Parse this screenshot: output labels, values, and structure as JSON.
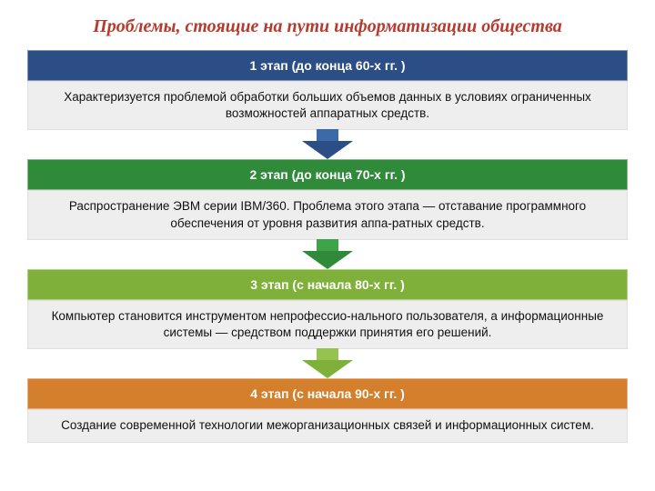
{
  "title": "Проблемы, стоящие на пути информатизации общества",
  "title_color": "#b73a2e",
  "body_bg": "#eeeeee",
  "body_text_color": "#111111",
  "stages": [
    {
      "header": "1 этап (до конца 60-х гг. )",
      "body": "Характеризуется проблемой обработки больших объемов данных в условиях ограниченных возможностей аппаратных средств.",
      "header_bg": "#2b4e86",
      "arrow_stem": "#3c6aa8",
      "arrow_head": "#2b4e86"
    },
    {
      "header": "2 этап (до конца 70-х гг. )",
      "body": "Распространение ЭВМ серии IBM/360. Проблема этого этапа — отставание программного обеспечения от уровня развития аппа-ратных средств.",
      "header_bg": "#2f8a3a",
      "arrow_stem": "#3fa34a",
      "arrow_head": "#2f8a3a"
    },
    {
      "header": "3 этап (с начала 80-х гг. )",
      "body": "Компьютер становится инструментом непрофессио-нального пользователя, а информационные системы — средством поддержки принятия его решений.",
      "header_bg": "#7fb13a",
      "arrow_stem": "#94c44f",
      "arrow_head": "#7fb13a"
    },
    {
      "header": "4 этап (с начала 90-х гг. )",
      "body": "Создание современной технологии межорганизационных связей и информационных систем.",
      "header_bg": "#d47f2b",
      "arrow_stem": "",
      "arrow_head": ""
    }
  ]
}
